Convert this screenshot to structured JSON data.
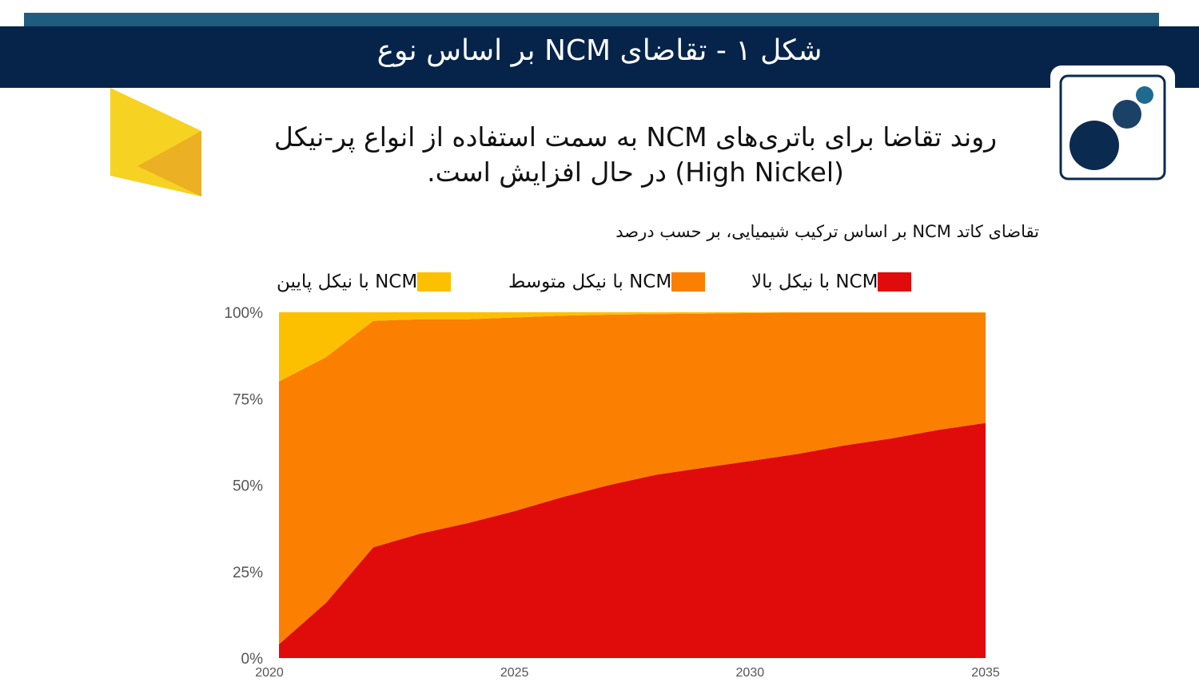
{
  "header": {
    "title": "شکل ۱ - تقاضای NCM بر اساس نوع"
  },
  "subtitle": {
    "line1": "روند تقاضا برای باتری‌های NCM به سمت استفاده از انواع پر-نیکل",
    "line2": "(High Nickel) در حال افزایش است."
  },
  "colors": {
    "header_bg": "#06244a",
    "strip": "#1f5c80",
    "high": "#e00b0b",
    "mid": "#fb7f00",
    "low": "#fdc000",
    "logo_dark": "#0b2a4f",
    "logo_mid": "#1b4166",
    "logo_accent": "#1f6a8f",
    "shape_yellow": "#f6d222",
    "shape_gold": "#ebb023"
  },
  "chart_data": {
    "type": "area",
    "stacked": true,
    "percent": true,
    "title": "تقاضای کاتد NCM بر اساس ترکیب شیمیایی، بر حسب درصد",
    "x": [
      2020,
      2021,
      2022,
      2023,
      2024,
      2025,
      2026,
      2027,
      2028,
      2029,
      2030,
      2031,
      2032,
      2033,
      2034,
      2035
    ],
    "x_ticks": [
      2020,
      2025,
      2030,
      2035
    ],
    "x_tick_labels": [
      "2020",
      "2025",
      "2030",
      "2035"
    ],
    "y_ticks": [
      0,
      25,
      50,
      75,
      100
    ],
    "y_tick_labels": [
      "0%",
      "25%",
      "50%",
      "75%",
      "100%"
    ],
    "ylim": [
      0,
      100
    ],
    "legend_position": "top",
    "series": [
      {
        "name": "NCM با نیکل بالا",
        "key": "high",
        "values": [
          4,
          16,
          32,
          36,
          39,
          42.5,
          46.5,
          50,
          53,
          55,
          57,
          59,
          61.5,
          63.5,
          66,
          68
        ]
      },
      {
        "name": "NCM با نیکل متوسط",
        "key": "mid",
        "values": [
          76,
          71,
          65.5,
          62,
          59,
          56,
          52.5,
          49.3,
          46.5,
          44.6,
          42.8,
          40.9,
          38.4,
          36.4,
          33.9,
          31.9
        ]
      },
      {
        "name": "NCM با نیکل پایین",
        "key": "low",
        "values": [
          20,
          13,
          2.5,
          2,
          2,
          1.5,
          1,
          0.7,
          0.5,
          0.4,
          0.2,
          0.1,
          0.1,
          0.1,
          0.1,
          0.1
        ]
      }
    ]
  }
}
